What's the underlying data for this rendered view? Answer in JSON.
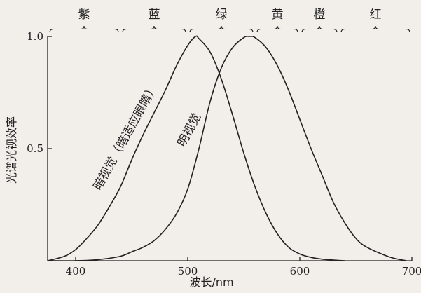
{
  "chart_data": {
    "type": "line",
    "title": "",
    "xlabel": "波长/nm",
    "ylabel": "光谱光视效率",
    "xlim": [
      375,
      700
    ],
    "ylim": [
      0,
      1.0
    ],
    "x_ticks": [
      400,
      500,
      600,
      700
    ],
    "y_ticks": [
      {
        "value": 0.5,
        "label": "0.5"
      },
      {
        "value": 1.0,
        "label": "1.0"
      }
    ],
    "color_bands": [
      {
        "label": "紫",
        "from": 375,
        "to": 440
      },
      {
        "label": "蓝",
        "from": 440,
        "to": 500
      },
      {
        "label": "绿",
        "from": 500,
        "to": 560
      },
      {
        "label": "黄",
        "from": 560,
        "to": 600
      },
      {
        "label": "橙",
        "from": 600,
        "to": 635
      },
      {
        "label": "红",
        "from": 635,
        "to": 700
      }
    ],
    "series": [
      {
        "name": "暗视觉（暗适应眼睛）",
        "x": [
          375,
          390,
          400,
          410,
          420,
          430,
          440,
          450,
          460,
          470,
          480,
          490,
          500,
          507,
          510,
          520,
          530,
          540,
          550,
          560,
          570,
          580,
          590,
          600,
          610,
          620,
          630,
          640
        ],
        "y": [
          0.0,
          0.02,
          0.05,
          0.1,
          0.16,
          0.24,
          0.33,
          0.45,
          0.56,
          0.66,
          0.76,
          0.87,
          0.96,
          1.0,
          0.99,
          0.93,
          0.81,
          0.65,
          0.48,
          0.33,
          0.21,
          0.12,
          0.06,
          0.03,
          0.015,
          0.007,
          0.003,
          0.0
        ]
      },
      {
        "name": "明视觉",
        "x": [
          375,
          400,
          420,
          440,
          450,
          460,
          470,
          480,
          490,
          500,
          510,
          520,
          530,
          540,
          550,
          555,
          560,
          570,
          580,
          590,
          600,
          610,
          620,
          630,
          640,
          650,
          660,
          680,
          695
        ],
        "y": [
          0.0,
          0.0,
          0.005,
          0.02,
          0.04,
          0.06,
          0.09,
          0.14,
          0.21,
          0.32,
          0.5,
          0.71,
          0.86,
          0.95,
          0.995,
          1.0,
          0.995,
          0.95,
          0.87,
          0.76,
          0.63,
          0.5,
          0.38,
          0.26,
          0.17,
          0.1,
          0.06,
          0.017,
          0.0
        ]
      }
    ],
    "legend": "none"
  }
}
